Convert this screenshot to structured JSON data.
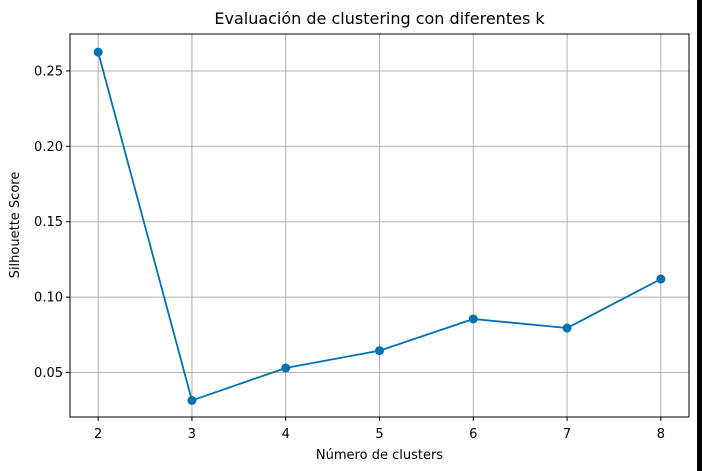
{
  "chart_data": {
    "type": "line",
    "title": "Evaluación de clustering con diferentes k",
    "xlabel": "Número de clusters",
    "ylabel": "Silhouette Score",
    "x": [
      2,
      3,
      4,
      5,
      6,
      7,
      8
    ],
    "series": [
      {
        "values": [
          0.2625,
          0.0315,
          0.053,
          0.0645,
          0.0855,
          0.0795,
          0.112
        ]
      }
    ],
    "xlim": [
      1.7,
      8.3
    ],
    "ylim": [
      0.0205,
      0.2745
    ],
    "xticks": [
      2,
      3,
      4,
      5,
      6,
      7,
      8
    ],
    "yticks": [
      0.05,
      0.1,
      0.15,
      0.2,
      0.25
    ],
    "ytick_labels": [
      "0.05",
      "0.10",
      "0.15",
      "0.20",
      "0.25"
    ],
    "grid": true,
    "line_color": "#0072b2",
    "marker": "circle"
  }
}
